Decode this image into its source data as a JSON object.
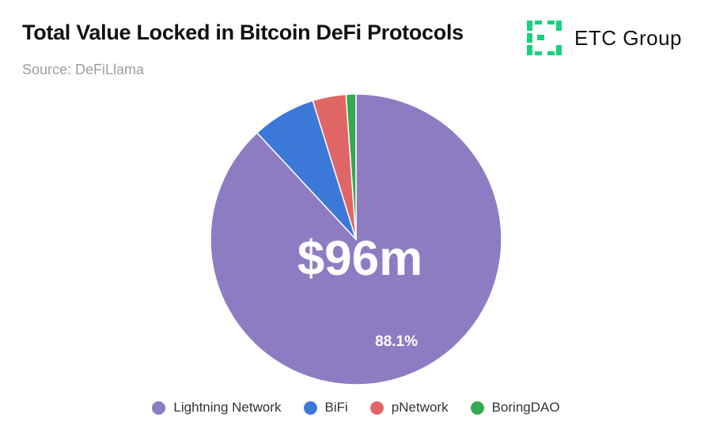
{
  "header": {
    "title": "Total Value Locked in Bitcoin DeFi Protocols",
    "subtitle": "Source: DeFiLlama"
  },
  "brand": {
    "name": "ETC Group",
    "accent": "#19d17e"
  },
  "chart_data": {
    "type": "pie",
    "center_label": "$96m",
    "legend_position": "bottom",
    "slices": [
      {
        "name": "Lightning Network",
        "value": 88.1,
        "label": "88.1%",
        "color": "#8e7cc3"
      },
      {
        "name": "BiFi",
        "value": 7.1,
        "label": "",
        "color": "#3c78d8"
      },
      {
        "name": "pNetwork",
        "value": 3.7,
        "label": "",
        "color": "#e06666"
      },
      {
        "name": "BoringDAO",
        "value": 1.1,
        "label": "",
        "color": "#34a853"
      }
    ]
  }
}
